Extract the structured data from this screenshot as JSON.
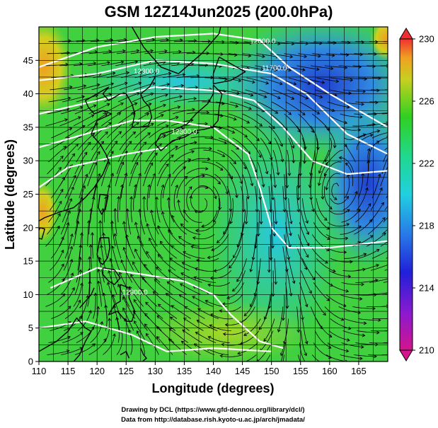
{
  "chart_data": {
    "type": "heatmap",
    "title": "GSM 12Z14Jun2025 (200.0hPa)",
    "xlabel": "Longitude (degrees)",
    "ylabel": "Latitude  (degrees)",
    "xlim": [
      110,
      170
    ],
    "ylim": [
      0,
      50
    ],
    "x_ticks": [
      110,
      115,
      120,
      125,
      130,
      135,
      140,
      145,
      150,
      155,
      160,
      165
    ],
    "y_ticks": [
      0,
      5,
      10,
      15,
      20,
      25,
      30,
      35,
      40,
      45
    ],
    "grid": true,
    "colorbar": {
      "range": [
        210,
        230
      ],
      "tick_labels": [
        "230",
        "226",
        "222",
        "218",
        "214",
        "210"
      ],
      "tick_values": [
        230,
        226,
        222,
        218,
        214,
        210
      ]
    },
    "contour_labels": [
      {
        "text": "12000.0",
        "lon": 148.5,
        "lat": 47.5
      },
      {
        "text": "11700.0",
        "lon": 150.5,
        "lat": 43.5
      },
      {
        "text": "12300.0",
        "lon": 128.5,
        "lat": 43.0
      },
      {
        "text": "12300.0",
        "lon": 135.0,
        "lat": 34.0
      },
      {
        "text": "12300.0",
        "lon": 126.5,
        "lat": 10.0
      }
    ]
  },
  "credits": {
    "line1": "Drawing by DCL (https://www.gfd-dennou.org/library/dcl/)",
    "line2": "Data from http://database.rish.kyoto-u.ac.jp/arch/jmadata/"
  }
}
